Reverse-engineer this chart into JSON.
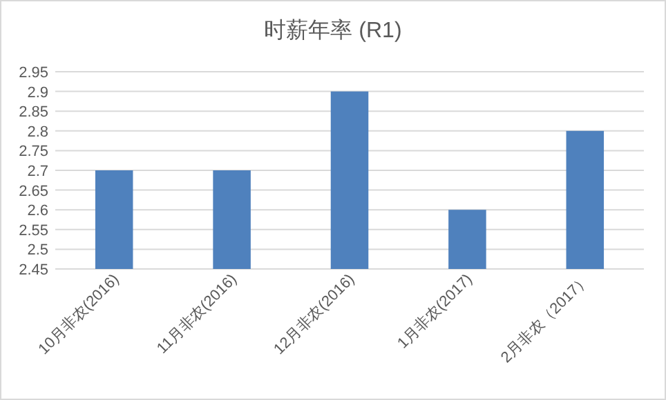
{
  "chart_data": {
    "type": "bar",
    "title": "时薪年率 (R1)",
    "categories": [
      "10月非农(2016)",
      "11月非农(2016)",
      "12月非农(2016)",
      "1月非农(2017)",
      "2月非农（2017）"
    ],
    "values": [
      2.7,
      2.7,
      2.9,
      2.6,
      2.8
    ],
    "color": "#4f81bd",
    "ylim": [
      2.45,
      2.95
    ],
    "yticks": [
      2.45,
      2.5,
      2.55,
      2.6,
      2.65,
      2.7,
      2.75,
      2.8,
      2.85,
      2.9,
      2.95
    ],
    "grid": "y"
  }
}
